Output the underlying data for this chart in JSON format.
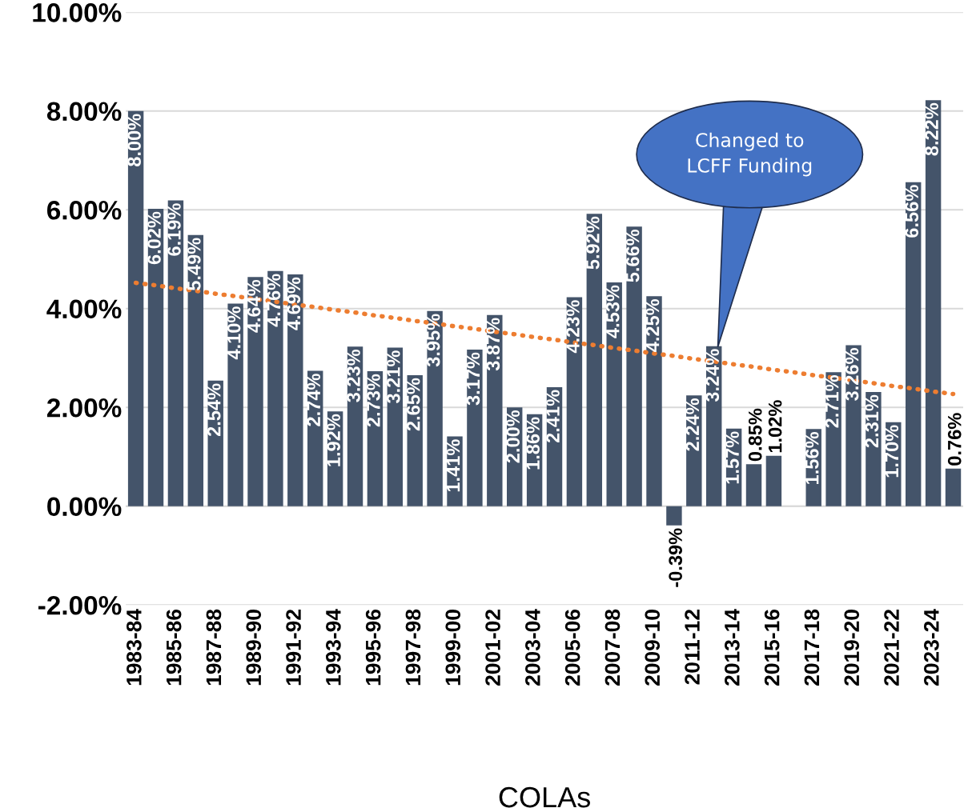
{
  "chart_data": {
    "type": "bar",
    "xlabel": "COLAs",
    "categories": [
      "1983-84",
      null,
      "1985-86",
      null,
      "1987-88",
      null,
      "1989-90",
      null,
      "1991-92",
      null,
      "1993-94",
      null,
      "1995-96",
      null,
      "1997-98",
      null,
      "1999-00",
      null,
      "2001-02",
      null,
      "2003-04",
      null,
      "2005-06",
      null,
      "2007-08",
      null,
      "2009-10",
      null,
      "2011-12",
      null,
      "2013-14",
      null,
      "2015-16",
      null,
      "2017-18",
      null,
      "2019-20",
      null,
      "2021-22",
      null,
      "2023-24",
      null
    ],
    "series": [
      {
        "color": "#44546a",
        "values": [
          8.0,
          6.02,
          6.19,
          5.49,
          2.54,
          4.1,
          4.64,
          4.76,
          4.69,
          2.74,
          1.92,
          3.23,
          2.73,
          3.21,
          2.65,
          3.95,
          1.41,
          3.17,
          3.87,
          2.0,
          1.86,
          2.41,
          4.23,
          5.92,
          4.53,
          5.66,
          4.25,
          -0.39,
          2.24,
          3.24,
          1.57,
          0.85,
          1.02,
          null,
          1.56,
          2.71,
          3.26,
          2.31,
          1.7,
          6.56,
          8.22,
          0.76
        ],
        "value_labels": [
          "8.00%",
          "6.02%",
          "6.19%",
          "5.49%",
          "2.54%",
          "4.10%",
          "4.64%",
          "4.76%",
          "4.69%",
          "2.74%",
          "1.92%",
          "3.23%",
          "2.73%",
          "3.21%",
          "2.65%",
          "3.95%",
          "1.41%",
          "3.17%",
          "3.87%",
          "2.00%",
          "1.86%",
          "2.41%",
          "4.23%",
          "5.92%",
          "4.53%",
          "5.66%",
          "4.25%",
          "-0.39%",
          "2.24%",
          "3.24%",
          "1.57%",
          "0.85%",
          "1.02%",
          null,
          "1.56%",
          "2.71%",
          "3.26%",
          "2.31%",
          "1.70%",
          "6.56%",
          "8.22%",
          "0.76%"
        ]
      },
      {
        "type": "line",
        "color": "#ed7d31",
        "line_style": "dotted",
        "values": [
          4.52,
          4.47,
          4.41,
          4.36,
          4.3,
          4.25,
          4.19,
          4.14,
          4.08,
          4.03,
          3.97,
          3.92,
          3.86,
          3.81,
          3.75,
          3.7,
          3.64,
          3.59,
          3.53,
          3.48,
          3.42,
          3.37,
          3.31,
          3.26,
          3.2,
          3.15,
          3.09,
          3.04,
          2.98,
          2.93,
          2.87,
          2.82,
          2.76,
          2.71,
          2.65,
          2.6,
          2.54,
          2.49,
          2.43,
          2.38,
          2.32,
          2.27
        ]
      }
    ],
    "ylim": [
      -2,
      10
    ],
    "yticks": [
      {
        "value": -2,
        "label": "-2.00%"
      },
      {
        "value": 0,
        "label": "0.00%"
      },
      {
        "value": 2,
        "label": "2.00%"
      },
      {
        "value": 4,
        "label": "4.00%"
      },
      {
        "value": 6,
        "label": "6.00%"
      },
      {
        "value": 8,
        "label": "8.00%"
      },
      {
        "value": 10,
        "label": "10.00%"
      }
    ],
    "grid": "y",
    "annotations": [
      "Changed to\nLCFF Funding"
    ]
  }
}
